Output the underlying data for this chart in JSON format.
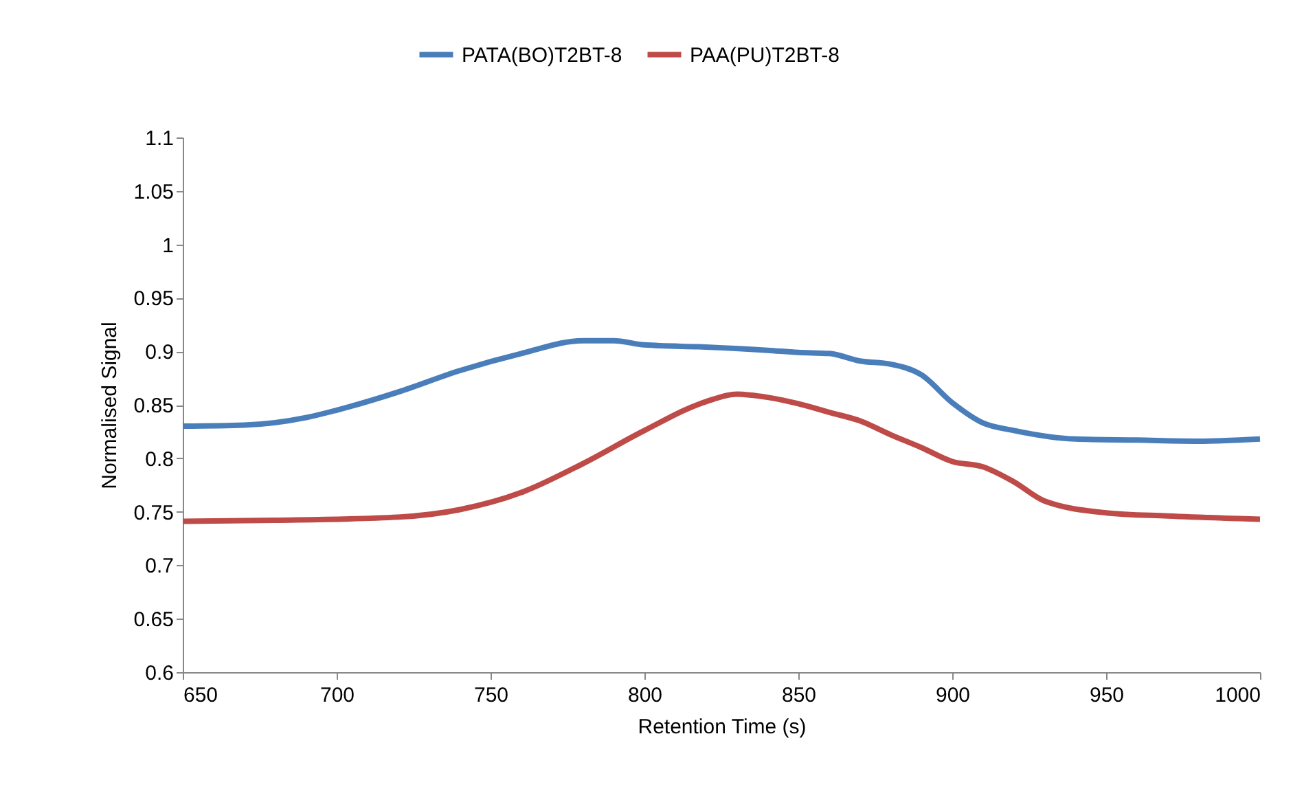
{
  "chart_data": {
    "type": "line",
    "xlabel": "Retention Time (s)",
    "ylabel": "Normalised Signal",
    "xlim": [
      650,
      1000
    ],
    "xticks": [
      650,
      700,
      750,
      800,
      850,
      900,
      950,
      1000
    ],
    "ylim": [
      0.6,
      1.1
    ],
    "yticks": [
      0.6,
      0.65,
      0.7,
      0.75,
      0.8,
      0.85,
      0.9,
      0.95,
      1,
      1.05,
      1.1
    ],
    "grid": false,
    "legend": "top",
    "marker": "none",
    "line_style": "solid",
    "series": [
      {
        "name": "PATA(BO)T2BT-8",
        "color": "#4a7ebb",
        "x": [
          650,
          670,
          690,
          700,
          720,
          740,
          760,
          780,
          790,
          800,
          820,
          840,
          850,
          860,
          870,
          880,
          890,
          900,
          910,
          920,
          940,
          960,
          980,
          1000
        ],
        "values": [
          0.83,
          0.831,
          0.838,
          0.845,
          0.862,
          0.882,
          0.898,
          0.91,
          0.91,
          0.906,
          0.904,
          0.901,
          0.899,
          0.898,
          0.891,
          0.888,
          0.878,
          0.852,
          0.833,
          0.826,
          0.818,
          0.817,
          0.816,
          0.818
        ]
      },
      {
        "name": "PAA(PU)T2BT-8",
        "color": "#be4b48",
        "x": [
          650,
          680,
          720,
          740,
          760,
          780,
          800,
          820,
          830,
          840,
          850,
          860,
          870,
          880,
          890,
          900,
          910,
          920,
          930,
          950,
          970,
          1000
        ],
        "values": [
          0.741,
          0.742,
          0.745,
          0.752,
          0.768,
          0.795,
          0.826,
          0.853,
          0.86,
          0.857,
          0.851,
          0.843,
          0.835,
          0.822,
          0.81,
          0.797,
          0.792,
          0.778,
          0.76,
          0.749,
          0.746,
          0.743
        ]
      }
    ]
  }
}
